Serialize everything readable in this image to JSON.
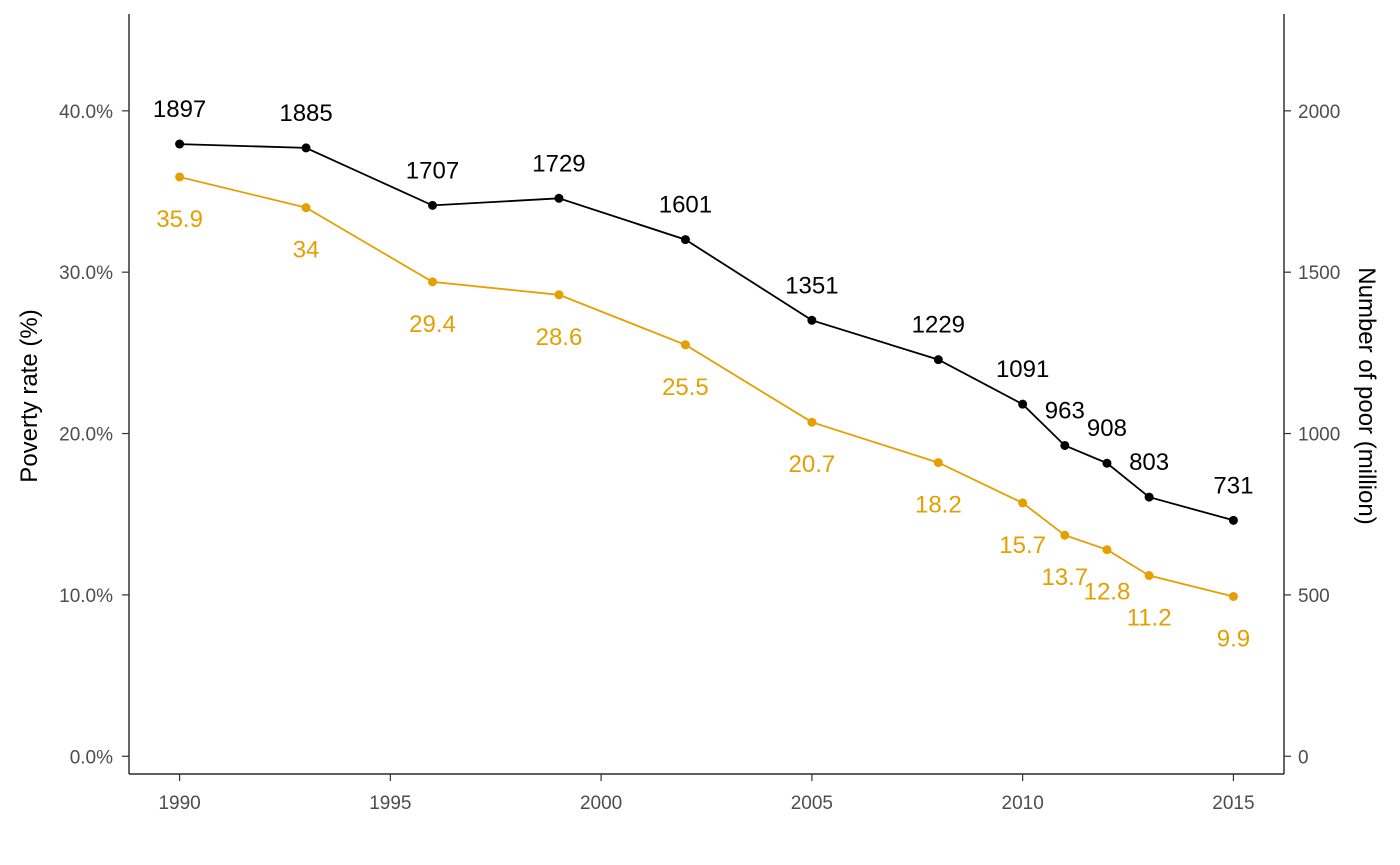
{
  "chart_data": {
    "type": "line",
    "x": [
      1990,
      1993,
      1996,
      1999,
      2002,
      2005,
      2008,
      2010,
      2011,
      2012,
      2013,
      2015
    ],
    "xticks": [
      1990,
      1995,
      2000,
      2005,
      2010,
      2015
    ],
    "xticks_labels": [
      "1990",
      "1995",
      "2000",
      "2005",
      "2010",
      "2015"
    ],
    "xlim": [
      1988.8,
      2016.2
    ],
    "ylabel_left": "Poverty rate (%)",
    "ylabel_right": "Number of poor (million)",
    "ylim_left": [
      -1.1,
      46.0
    ],
    "yticks_left": [
      0,
      10,
      20,
      30,
      40
    ],
    "yticks_left_labels": [
      "0.0%",
      "10.0%",
      "20.0%",
      "30.0%",
      "40.0%"
    ],
    "ylim_right": [
      -55,
      2300
    ],
    "yticks_right": [
      0,
      500,
      1000,
      1500,
      2000
    ],
    "yticks_right_labels": [
      "0",
      "500",
      "1000",
      "1500",
      "2000"
    ],
    "grid": false,
    "series": [
      {
        "axis": "right",
        "color": "#000000",
        "values": [
          1897,
          1885,
          1707,
          1729,
          1601,
          1351,
          1229,
          1091,
          963,
          908,
          803,
          731
        ],
        "labels": [
          "1897",
          "1885",
          "1707",
          "1729",
          "1601",
          "1351",
          "1229",
          "1091",
          "963",
          "908",
          "803",
          "731"
        ]
      },
      {
        "axis": "left",
        "color": "#E69F00",
        "values": [
          35.9,
          34,
          29.4,
          28.6,
          25.5,
          20.7,
          18.2,
          15.7,
          13.7,
          12.8,
          11.2,
          9.9
        ],
        "labels": [
          "35.9",
          "34",
          "29.4",
          "28.6",
          "25.5",
          "20.7",
          "18.2",
          "15.7",
          "13.7",
          "12.8",
          "11.2",
          "9.9"
        ]
      }
    ]
  }
}
